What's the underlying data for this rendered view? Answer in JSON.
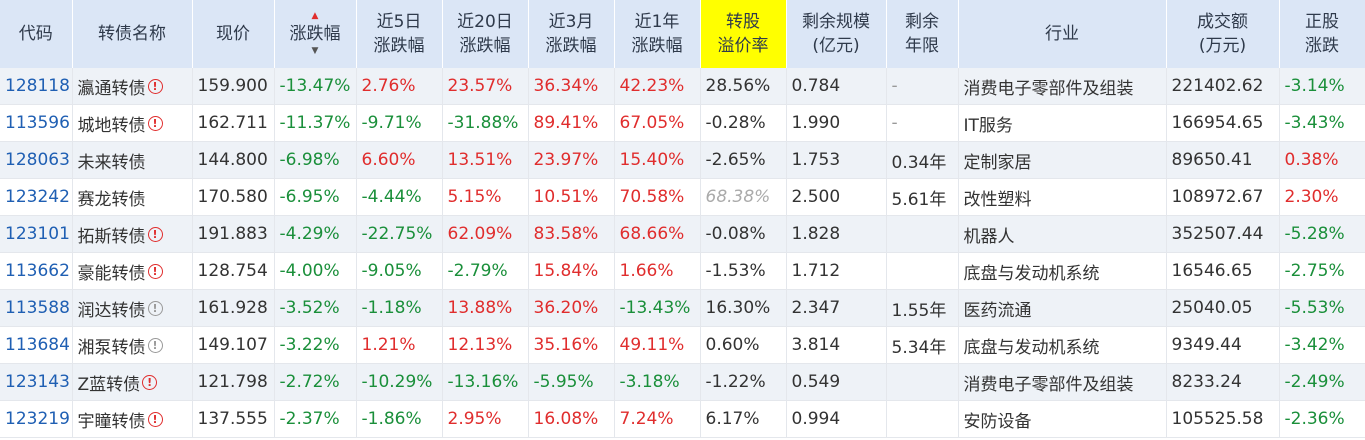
{
  "headers": {
    "code": "代码",
    "name": "转债名称",
    "price": "现价",
    "change": "涨跌幅",
    "d5": [
      "近5日",
      "涨跌幅"
    ],
    "d20": [
      "近20日",
      "涨跌幅"
    ],
    "m3": [
      "近3月",
      "涨跌幅"
    ],
    "y1": [
      "近1年",
      "涨跌幅"
    ],
    "premium": [
      "转股",
      "溢价率"
    ],
    "scale": [
      "剩余规模",
      "(亿元)"
    ],
    "remain": [
      "剩余",
      "年限"
    ],
    "industry": "行业",
    "volume": [
      "成交额",
      "(万元)"
    ],
    "stock": [
      "正股",
      "涨跌"
    ]
  },
  "icons": {
    "warn_red": "exclamation-circle-red-icon",
    "warn_gray": "exclamation-circle-gray-icon",
    "sort": "sort-arrows-icon",
    "warn_glyph": "!",
    "sort_up_glyph": "▲",
    "sort_down_glyph": "▼"
  },
  "colors": {
    "up": "#e02d2d",
    "down": "#1a8f3a",
    "code": "#1f5fb3",
    "header_bg": "#dbe6f6",
    "highlight": "#ffff00"
  },
  "rows": [
    {
      "code": "128118",
      "name": "瀛通转债",
      "warn": "red",
      "price": "159.900",
      "change": "-13.47%",
      "d5": "2.76%",
      "d20": "23.57%",
      "m3": "36.34%",
      "y1": "42.23%",
      "premium": "28.56%",
      "premium_style": "plain",
      "scale": "0.784",
      "remain": "-",
      "industry": "消费电子零部件及组装",
      "volume": "221402.62",
      "stock": "-3.14%"
    },
    {
      "code": "113596",
      "name": "城地转债",
      "warn": "red",
      "price": "162.711",
      "change": "-11.37%",
      "d5": "-9.71%",
      "d20": "-31.88%",
      "m3": "89.41%",
      "y1": "67.05%",
      "premium": "-0.28%",
      "premium_style": "plain",
      "scale": "1.990",
      "remain": "-",
      "industry": "IT服务",
      "volume": "166954.65",
      "stock": "-3.43%"
    },
    {
      "code": "128063",
      "name": "未来转债",
      "warn": "",
      "price": "144.800",
      "change": "-6.98%",
      "d5": "6.60%",
      "d20": "13.51%",
      "m3": "23.97%",
      "y1": "15.40%",
      "premium": "-2.65%",
      "premium_style": "plain",
      "scale": "1.753",
      "remain": "0.34年",
      "industry": "定制家居",
      "volume": "89650.41",
      "stock": "0.38%"
    },
    {
      "code": "123242",
      "name": "赛龙转债",
      "warn": "",
      "price": "170.580",
      "change": "-6.95%",
      "d5": "-4.44%",
      "d20": "5.15%",
      "m3": "10.51%",
      "y1": "70.58%",
      "premium": "68.38%",
      "premium_style": "gray-it",
      "scale": "2.500",
      "remain": "5.61年",
      "industry": "改性塑料",
      "volume": "108972.67",
      "stock": "2.30%"
    },
    {
      "code": "123101",
      "name": "拓斯转债",
      "warn": "red",
      "price": "191.883",
      "change": "-4.29%",
      "d5": "-22.75%",
      "d20": "62.09%",
      "m3": "83.58%",
      "y1": "68.66%",
      "premium": "-0.08%",
      "premium_style": "plain",
      "scale": "1.828",
      "remain": "",
      "industry": "机器人",
      "volume": "352507.44",
      "stock": "-5.28%"
    },
    {
      "code": "113662",
      "name": "豪能转债",
      "warn": "red",
      "price": "128.754",
      "change": "-4.00%",
      "d5": "-9.05%",
      "d20": "-2.79%",
      "m3": "15.84%",
      "y1": "1.66%",
      "premium": "-1.53%",
      "premium_style": "plain",
      "scale": "1.712",
      "remain": "",
      "industry": "底盘与发动机系统",
      "volume": "16546.65",
      "stock": "-2.75%"
    },
    {
      "code": "113588",
      "name": "润达转债",
      "warn": "gray",
      "price": "161.928",
      "change": "-3.52%",
      "d5": "-1.18%",
      "d20": "13.88%",
      "m3": "36.20%",
      "y1": "-13.43%",
      "premium": "16.30%",
      "premium_style": "plain",
      "scale": "2.347",
      "remain": "1.55年",
      "industry": "医药流通",
      "volume": "25040.05",
      "stock": "-5.53%"
    },
    {
      "code": "113684",
      "name": "湘泵转债",
      "warn": "gray",
      "price": "149.107",
      "change": "-3.22%",
      "d5": "1.21%",
      "d20": "12.13%",
      "m3": "35.16%",
      "y1": "49.11%",
      "premium": "0.60%",
      "premium_style": "plain",
      "scale": "3.814",
      "remain": "5.34年",
      "industry": "底盘与发动机系统",
      "volume": "9349.44",
      "stock": "-3.42%"
    },
    {
      "code": "123143",
      "name": "Z蓝转债",
      "warn": "red",
      "price": "121.798",
      "change": "-2.72%",
      "d5": "-10.29%",
      "d20": "-13.16%",
      "m3": "-5.95%",
      "y1": "-3.18%",
      "premium": "-1.22%",
      "premium_style": "plain",
      "scale": "0.549",
      "remain": "",
      "industry": "消费电子零部件及组装",
      "volume": "8233.24",
      "stock": "-2.49%"
    },
    {
      "code": "123219",
      "name": "宇瞳转债",
      "warn": "red",
      "price": "137.555",
      "change": "-2.37%",
      "d5": "-1.86%",
      "d20": "2.95%",
      "m3": "16.08%",
      "y1": "7.24%",
      "premium": "6.17%",
      "premium_style": "plain",
      "scale": "0.994",
      "remain": "",
      "industry": "安防设备",
      "volume": "105525.58",
      "stock": "-2.36%"
    }
  ]
}
